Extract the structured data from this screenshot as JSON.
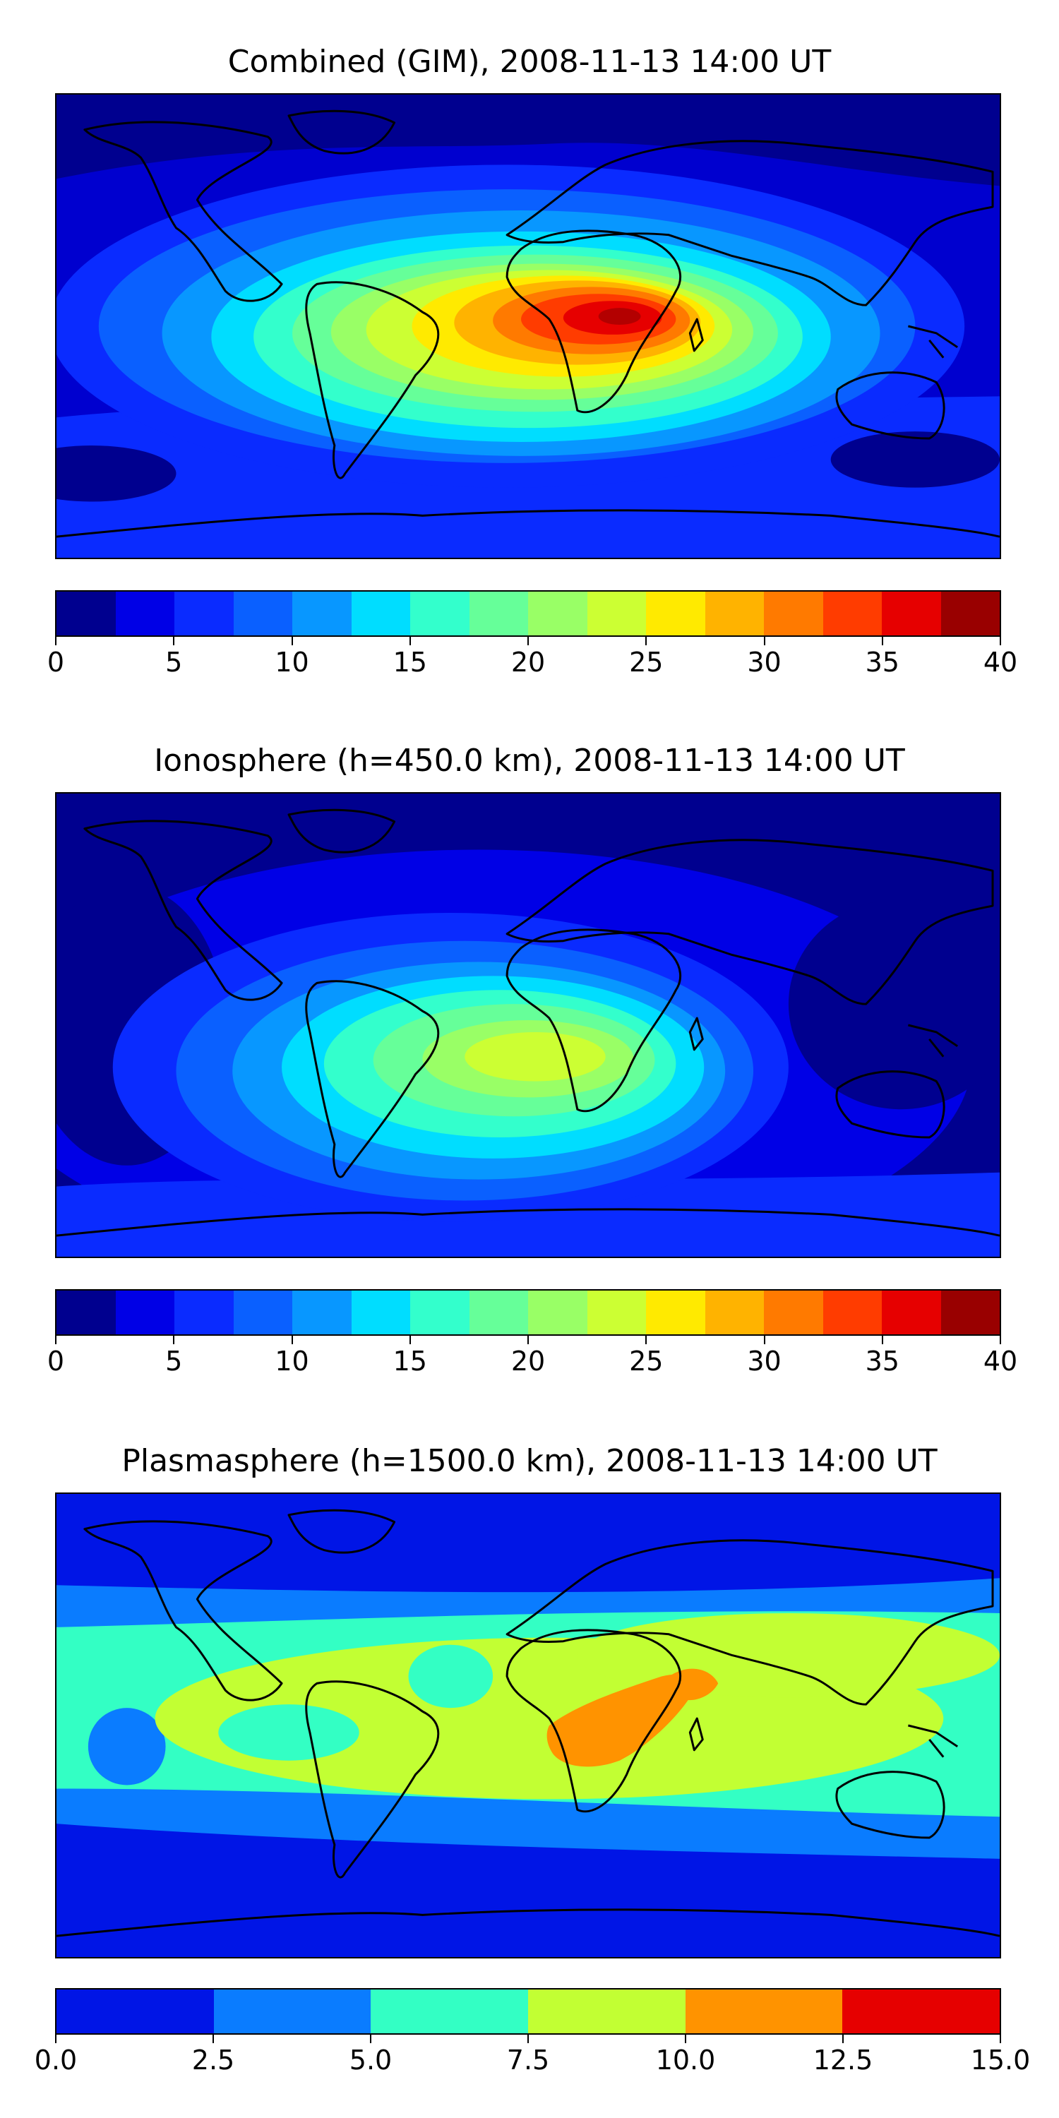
{
  "panels": [
    {
      "title": "Combined (GIM), 2008-11-13 14:00 UT",
      "colorbar": {
        "colors": [
          "#00008f",
          "#0000e6",
          "#0a2bff",
          "#0a60ff",
          "#0897ff",
          "#00ddff",
          "#33ffcc",
          "#66ff99",
          "#99ff66",
          "#ccff33",
          "#ffea00",
          "#ffb300",
          "#ff7a00",
          "#ff3c00",
          "#e60000",
          "#990000"
        ],
        "ticks": [
          "0",
          "5",
          "10",
          "15",
          "20",
          "25",
          "30",
          "35",
          "40"
        ]
      }
    },
    {
      "title": "Ionosphere  (h=450.0 km), 2008-11-13 14:00 UT",
      "colorbar": {
        "colors": [
          "#00008f",
          "#0000e6",
          "#0a2bff",
          "#0a60ff",
          "#0897ff",
          "#00ddff",
          "#33ffcc",
          "#66ff99",
          "#99ff66",
          "#ccff33",
          "#ffea00",
          "#ffb300",
          "#ff7a00",
          "#ff3c00",
          "#e60000",
          "#990000"
        ],
        "ticks": [
          "0",
          "5",
          "10",
          "15",
          "20",
          "25",
          "30",
          "35",
          "40"
        ]
      }
    },
    {
      "title": "Plasmasphere (h=1500.0 km), 2008-11-13 14:00 UT",
      "colorbar": {
        "colors": [
          "#0015e6",
          "#0a7cff",
          "#33ffc4",
          "#c2ff33",
          "#ff9300",
          "#e60000"
        ],
        "ticks": [
          "0.0",
          "2.5",
          "5.0",
          "7.5",
          "10.0",
          "12.5",
          "15.0"
        ]
      }
    }
  ]
}
